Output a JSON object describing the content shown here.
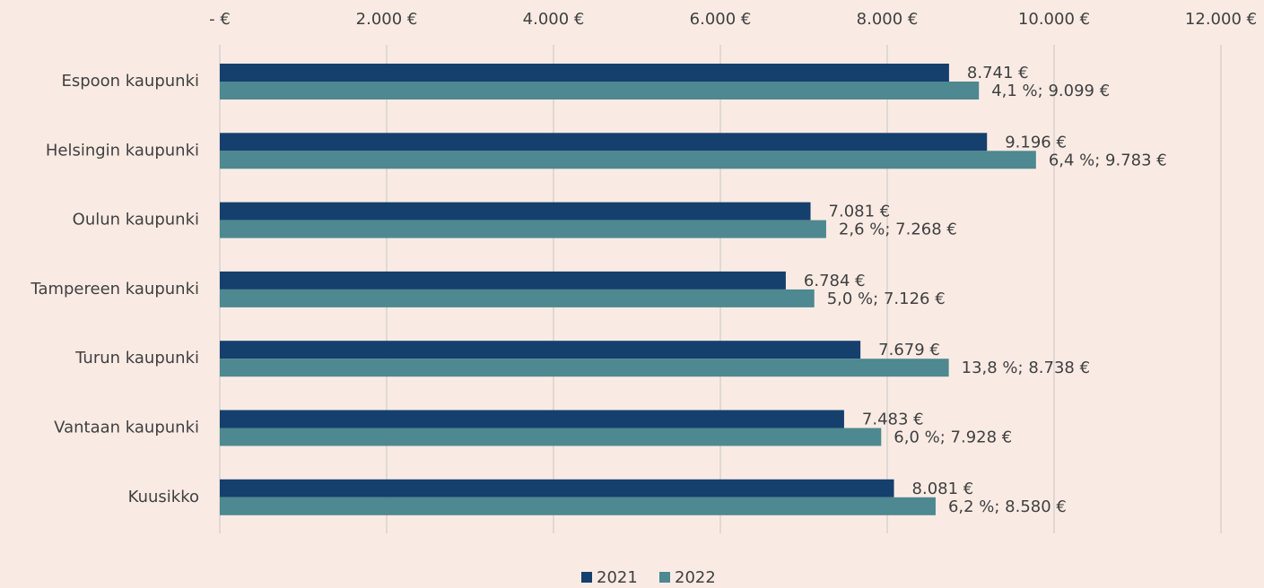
{
  "chart_data": {
    "type": "barh",
    "categories": [
      "Espoon kaupunki",
      "Helsingin kaupunki",
      "Oulun kaupunki",
      "Tampereen kaupunki",
      "Turun kaupunki",
      "Vantaan kaupunki",
      "Kuusikko"
    ],
    "series": [
      {
        "name": "2021",
        "color": "#153f6d",
        "values": [
          8741,
          9196,
          7081,
          6784,
          7679,
          7483,
          8081
        ],
        "value_labels": [
          "8.741 €",
          "9.196 €",
          "7.081 €",
          "6.784 €",
          "7.679 €",
          "7.483 €",
          "8.081 €"
        ]
      },
      {
        "name": "2022",
        "color": "#4e8890",
        "values": [
          9099,
          9783,
          7268,
          7126,
          8738,
          7928,
          8580
        ],
        "value_labels": [
          "4,1 %;  9.099 €",
          "6,4 %;  9.783 €",
          "2,6 %;  7.268 €",
          "5,0 %;  7.126 €",
          "13,8 %;  8.738 €",
          "6,0 %;  7.928 €",
          "6,2 %;  8.580 €"
        ]
      }
    ],
    "xlim": [
      0,
      12000
    ],
    "xticks": [
      {
        "value": 0,
        "label": "-  €"
      },
      {
        "value": 2000,
        "label": "2.000 €"
      },
      {
        "value": 4000,
        "label": "4.000 €"
      },
      {
        "value": 6000,
        "label": "6.000 €"
      },
      {
        "value": 8000,
        "label": "8.000 €"
      },
      {
        "value": 10000,
        "label": "10.000 €"
      },
      {
        "value": 12000,
        "label": "12.000 €"
      }
    ],
    "grid": true,
    "legend": "bottom"
  }
}
